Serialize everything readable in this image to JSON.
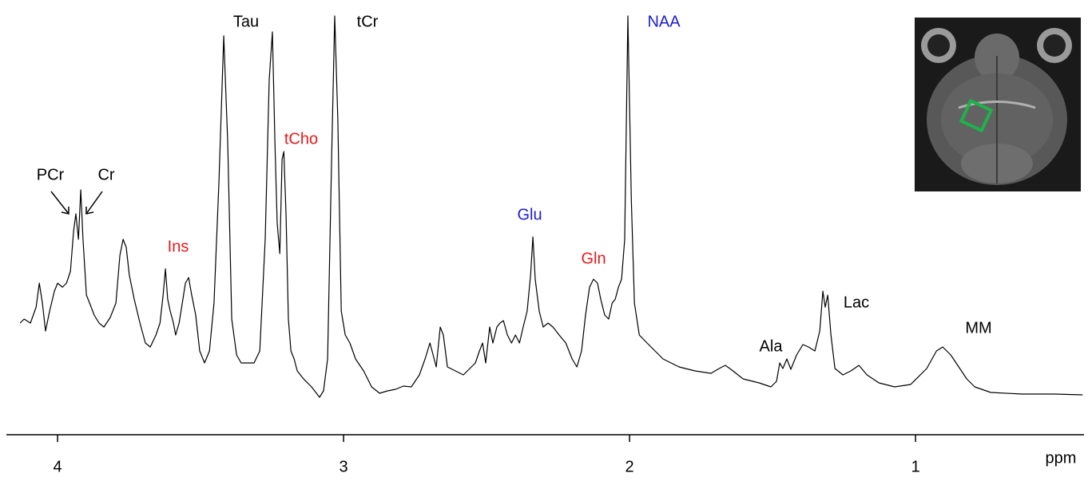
{
  "chart_data": {
    "type": "line",
    "x_label": "ppm",
    "color": "#000000",
    "xlim": [
      4.179,
      0.411
    ],
    "ylim": [
      0,
      535
    ],
    "xticks": [
      4,
      3,
      2,
      1
    ],
    "x": [
      4.131,
      4.117,
      4.095,
      4.075,
      4.064,
      4.053,
      4.042,
      4.028,
      4.011,
      4.0,
      3.983,
      3.969,
      3.955,
      3.944,
      3.936,
      3.927,
      3.919,
      3.911,
      3.899,
      3.888,
      3.872,
      3.855,
      3.838,
      3.816,
      3.796,
      3.782,
      3.771,
      3.76,
      3.749,
      3.732,
      3.712,
      3.693,
      3.676,
      3.656,
      3.642,
      3.631,
      3.623,
      3.615,
      3.606,
      3.595,
      3.587,
      3.575,
      3.564,
      3.553,
      3.542,
      3.531,
      3.517,
      3.503,
      3.486,
      3.469,
      3.453,
      3.436,
      3.419,
      3.405,
      3.391,
      3.374,
      3.358,
      3.335,
      3.313,
      3.293,
      3.274,
      3.26,
      3.249,
      3.24,
      3.232,
      3.223,
      3.215,
      3.209,
      3.201,
      3.193,
      3.184,
      3.173,
      3.162,
      3.14,
      3.112,
      3.084,
      3.07,
      3.056,
      3.042,
      3.031,
      3.02,
      3.008,
      2.994,
      2.978,
      2.958,
      2.93,
      2.902,
      2.874,
      2.846,
      2.818,
      2.791,
      2.763,
      2.735,
      2.715,
      2.698,
      2.687,
      2.676,
      2.662,
      2.651,
      2.637,
      2.609,
      2.581,
      2.553,
      2.539,
      2.525,
      2.514,
      2.503,
      2.489,
      2.478,
      2.464,
      2.453,
      2.441,
      2.427,
      2.413,
      2.399,
      2.385,
      2.372,
      2.358,
      2.346,
      2.338,
      2.33,
      2.316,
      2.302,
      2.285,
      2.268,
      2.246,
      2.223,
      2.201,
      2.184,
      2.168,
      2.154,
      2.14,
      2.126,
      2.112,
      2.101,
      2.087,
      2.073,
      2.061,
      2.05,
      2.039,
      2.028,
      2.017,
      2.006,
      1.994,
      1.983,
      1.966,
      1.939,
      1.911,
      1.883,
      1.827,
      1.771,
      1.715,
      1.687,
      1.665,
      1.642,
      1.603,
      1.547,
      1.506,
      1.486,
      1.475,
      1.464,
      1.45,
      1.436,
      1.416,
      1.394,
      1.374,
      1.352,
      1.335,
      1.324,
      1.316,
      1.307,
      1.296,
      1.282,
      1.254,
      1.226,
      1.198,
      1.17,
      1.128,
      1.073,
      1.017,
      0.961,
      0.927,
      0.905,
      0.877,
      0.849,
      0.821,
      0.793,
      0.737,
      0.626,
      0.514,
      0.416
    ],
    "values": [
      140,
      145,
      140,
      160,
      190,
      165,
      130,
      155,
      180,
      190,
      185,
      190,
      205,
      255,
      277,
      245,
      307,
      245,
      175,
      165,
      150,
      140,
      135,
      147,
      165,
      225,
      245,
      235,
      200,
      170,
      140,
      115,
      110,
      125,
      140,
      175,
      208,
      170,
      155,
      140,
      125,
      140,
      165,
      190,
      197,
      175,
      150,
      105,
      90,
      105,
      165,
      315,
      500,
      365,
      145,
      100,
      90,
      90,
      90,
      105,
      245,
      445,
      505,
      365,
      265,
      227,
      345,
      355,
      275,
      145,
      105,
      95,
      80,
      70,
      60,
      47,
      55,
      95,
      345,
      525,
      395,
      155,
      125,
      115,
      95,
      80,
      60,
      52,
      55,
      57,
      61,
      60,
      75,
      95,
      115,
      100,
      85,
      135,
      125,
      85,
      80,
      75,
      85,
      90,
      105,
      115,
      90,
      135,
      115,
      135,
      140,
      143,
      125,
      115,
      125,
      115,
      135,
      155,
      200,
      248,
      195,
      155,
      135,
      140,
      135,
      125,
      115,
      95,
      85,
      105,
      150,
      185,
      195,
      190,
      170,
      150,
      145,
      165,
      170,
      185,
      195,
      245,
      525,
      295,
      165,
      125,
      115,
      105,
      95,
      85,
      80,
      77,
      83,
      87,
      81,
      70,
      65,
      60,
      67,
      90,
      83,
      95,
      82,
      100,
      113,
      110,
      105,
      130,
      180,
      160,
      175,
      125,
      83,
      75,
      80,
      87,
      75,
      65,
      60,
      63,
      83,
      105,
      110,
      100,
      85,
      70,
      60,
      53,
      51,
      51,
      50
    ],
    "annotations": [
      {
        "text": "Tau",
        "color": "#000000"
      },
      {
        "text": "tCr",
        "color": "#000000"
      },
      {
        "text": "NAA",
        "color": "#1c1cd4"
      },
      {
        "text": "tCho",
        "color": "#e8191a"
      },
      {
        "text": "PCr",
        "color": "#000000"
      },
      {
        "text": "Cr",
        "color": "#000000"
      },
      {
        "text": "Ins",
        "color": "#e8191a"
      },
      {
        "text": "Glu",
        "color": "#1c1cd4"
      },
      {
        "text": "Gln",
        "color": "#e8191a"
      },
      {
        "text": "Ala",
        "color": "#000000"
      },
      {
        "text": "Lac",
        "color": "#000000"
      },
      {
        "text": "MM",
        "color": "#000000"
      }
    ]
  }
}
